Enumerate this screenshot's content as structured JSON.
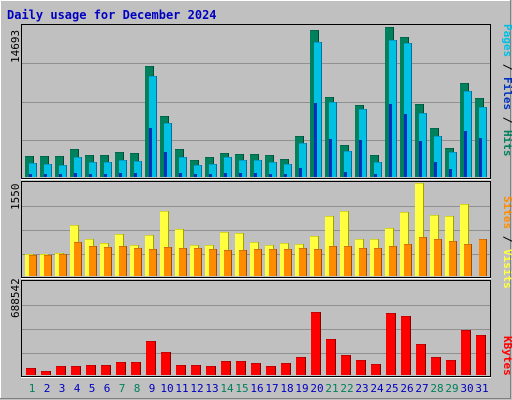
{
  "title": "Daily usage for December 2024",
  "colors": {
    "background": "#c0c0c0",
    "bevel_light": "#ffffff",
    "bevel_dark": "#808080",
    "title": "#0000c0",
    "hits_back": "#00805c",
    "hits_dark": "#004b36",
    "files": "#00c0e4",
    "files_dark": "#0070a0",
    "pages": "#0030c0",
    "visits": "#ffff40",
    "visits_dark": "#a0a000",
    "sites": "#ff8c00",
    "sites_dark": "#a05000",
    "kbytes": "#ff0000",
    "kbytes_dark": "#800000",
    "weekend_label": "#00805c",
    "weekday_label": "#0000c0",
    "grid": "#909090"
  },
  "chart_data": [
    {
      "type": "bar",
      "panel": "hits-files-pages",
      "ylabel_max": "14693",
      "ymax": 14693,
      "legend": {
        "labels": [
          "Pages",
          "Files",
          "Hits"
        ],
        "separator": " / "
      },
      "x": [
        "1",
        "2",
        "3",
        "4",
        "5",
        "6",
        "7",
        "8",
        "9",
        "10",
        "11",
        "12",
        "13",
        "14",
        "15",
        "16",
        "17",
        "18",
        "19",
        "20",
        "21",
        "22",
        "23",
        "24",
        "25",
        "26",
        "27",
        "28",
        "29",
        "30",
        "31"
      ],
      "weekend": [
        "1",
        "7",
        "8",
        "14",
        "15",
        "21",
        "22",
        "28",
        "29"
      ],
      "series": [
        {
          "name": "Hits",
          "values": [
            2000,
            2000,
            2000,
            2700,
            2100,
            2100,
            2400,
            2300,
            10800,
            5900,
            2700,
            1700,
            1900,
            2300,
            2200,
            2200,
            2100,
            1800,
            4000,
            14300,
            7800,
            3100,
            7000,
            2100,
            14600,
            13600,
            7100,
            4800,
            2800,
            9100,
            7700
          ]
        },
        {
          "name": "Files",
          "values": [
            1400,
            1300,
            1200,
            1900,
            1500,
            1500,
            1700,
            1600,
            9800,
            5300,
            1900,
            1200,
            1300,
            1900,
            1700,
            1700,
            1500,
            1300,
            3300,
            13100,
            7300,
            2500,
            6600,
            1500,
            13300,
            13000,
            6200,
            4000,
            2400,
            8400,
            6800
          ]
        },
        {
          "name": "Pages",
          "values": [
            300,
            300,
            250,
            400,
            300,
            300,
            350,
            350,
            4800,
            2400,
            400,
            250,
            300,
            400,
            350,
            350,
            300,
            250,
            900,
            7200,
            3700,
            500,
            3600,
            300,
            7100,
            6100,
            3500,
            1500,
            800,
            4500,
            3800
          ]
        }
      ]
    },
    {
      "type": "bar",
      "panel": "visits-sites",
      "ylabel_max": "1550",
      "ymax": 1550,
      "legend": {
        "labels": [
          "Sites",
          "Visits"
        ],
        "separator": " / "
      },
      "x": [
        "1",
        "2",
        "3",
        "4",
        "5",
        "6",
        "7",
        "8",
        "9",
        "10",
        "11",
        "12",
        "13",
        "14",
        "15",
        "16",
        "17",
        "18",
        "19",
        "20",
        "21",
        "22",
        "23",
        "24",
        "25",
        "26",
        "27",
        "28",
        "29",
        "30",
        "31"
      ],
      "series": [
        {
          "name": "Visits",
          "values": [
            360,
            360,
            390,
            850,
            610,
            550,
            700,
            520,
            690,
            1080,
            780,
            520,
            520,
            730,
            720,
            560,
            520,
            550,
            540,
            660,
            1000,
            1080,
            610,
            610,
            800,
            1070,
            1550,
            1020,
            1000,
            1200,
            0
          ]
        },
        {
          "name": "Sites",
          "values": [
            350,
            350,
            370,
            560,
            500,
            480,
            500,
            460,
            450,
            480,
            460,
            460,
            450,
            430,
            440,
            450,
            450,
            450,
            460,
            450,
            500,
            500,
            460,
            470,
            500,
            530,
            650,
            620,
            580,
            530,
            610
          ]
        }
      ]
    },
    {
      "type": "bar",
      "panel": "kbytes",
      "ylabel_max": "688542",
      "ymax": 688542,
      "legend": {
        "labels": [
          "KBytes"
        ],
        "separator": ""
      },
      "x": [
        "1",
        "2",
        "3",
        "4",
        "5",
        "6",
        "7",
        "8",
        "9",
        "10",
        "11",
        "12",
        "13",
        "14",
        "15",
        "16",
        "17",
        "18",
        "19",
        "20",
        "21",
        "22",
        "23",
        "24",
        "25",
        "26",
        "27",
        "28",
        "29",
        "30",
        "31"
      ],
      "series": [
        {
          "name": "KBytes",
          "values": [
            75000,
            45000,
            95000,
            95000,
            110000,
            110000,
            145000,
            145000,
            375000,
            260000,
            115000,
            110000,
            105000,
            155000,
            155000,
            130000,
            105000,
            130000,
            195000,
            695000,
            400000,
            220000,
            170000,
            125000,
            685000,
            655000,
            340000,
            200000,
            170000,
            500000,
            440000
          ]
        }
      ]
    }
  ]
}
